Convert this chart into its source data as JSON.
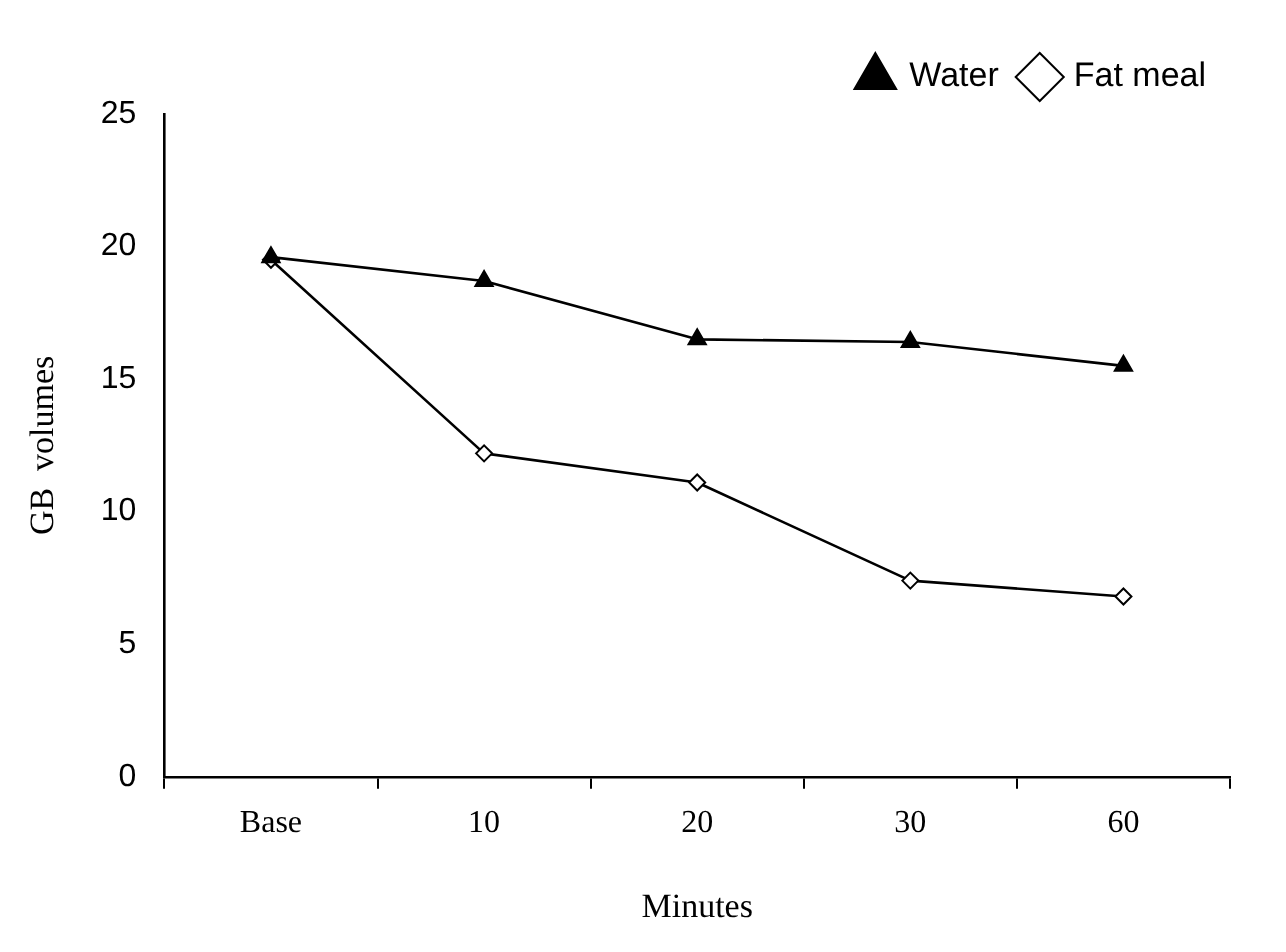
{
  "chart_data": {
    "type": "line",
    "xlabel": "Minutes",
    "ylabel": "GB  volumes",
    "categories": [
      "Base",
      "10",
      "20",
      "30",
      "60"
    ],
    "ylim": [
      0,
      25
    ],
    "yticks": [
      0,
      5,
      10,
      15,
      20,
      25
    ],
    "grid": false,
    "legend": "top right",
    "line_style": "solid",
    "series": [
      {
        "name": "Fat meal",
        "color": "#000000",
        "marker": "diamond",
        "values": [
          19.5,
          12.2,
          11.1,
          7.4,
          6.8
        ]
      },
      {
        "name": "Water",
        "color": "#000000",
        "marker": "triangle",
        "values": [
          19.6,
          18.7,
          16.5,
          16.4,
          15.5
        ]
      }
    ]
  }
}
